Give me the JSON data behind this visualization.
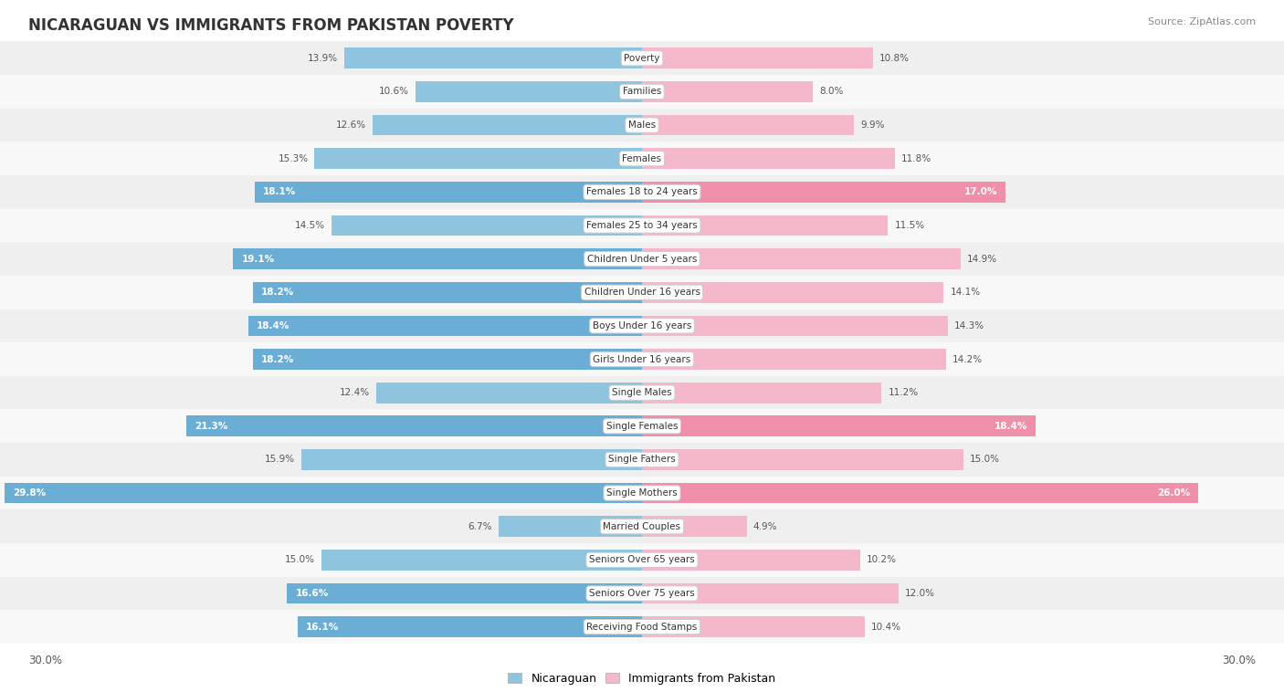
{
  "title": "NICARAGUAN VS IMMIGRANTS FROM PAKISTAN POVERTY",
  "source": "Source: ZipAtlas.com",
  "categories": [
    "Poverty",
    "Families",
    "Males",
    "Females",
    "Females 18 to 24 years",
    "Females 25 to 34 years",
    "Children Under 5 years",
    "Children Under 16 years",
    "Boys Under 16 years",
    "Girls Under 16 years",
    "Single Males",
    "Single Females",
    "Single Fathers",
    "Single Mothers",
    "Married Couples",
    "Seniors Over 65 years",
    "Seniors Over 75 years",
    "Receiving Food Stamps"
  ],
  "nicaraguan": [
    13.9,
    10.6,
    12.6,
    15.3,
    18.1,
    14.5,
    19.1,
    18.2,
    18.4,
    18.2,
    12.4,
    21.3,
    15.9,
    29.8,
    6.7,
    15.0,
    16.6,
    16.1
  ],
  "pakistan": [
    10.8,
    8.0,
    9.9,
    11.8,
    17.0,
    11.5,
    14.9,
    14.1,
    14.3,
    14.2,
    11.2,
    18.4,
    15.0,
    26.0,
    4.9,
    10.2,
    12.0,
    10.4
  ],
  "nicaraguan_color_normal": "#8fc4de",
  "nicaraguan_color_highlight": "#6aaed6",
  "pakistan_color_normal": "#f5b8cb",
  "pakistan_color_highlight": "#f08faa",
  "axis_limit": 30.0,
  "bar_height": 0.62,
  "highlight_threshold_nic": 16.0,
  "highlight_threshold_pak": 16.0
}
